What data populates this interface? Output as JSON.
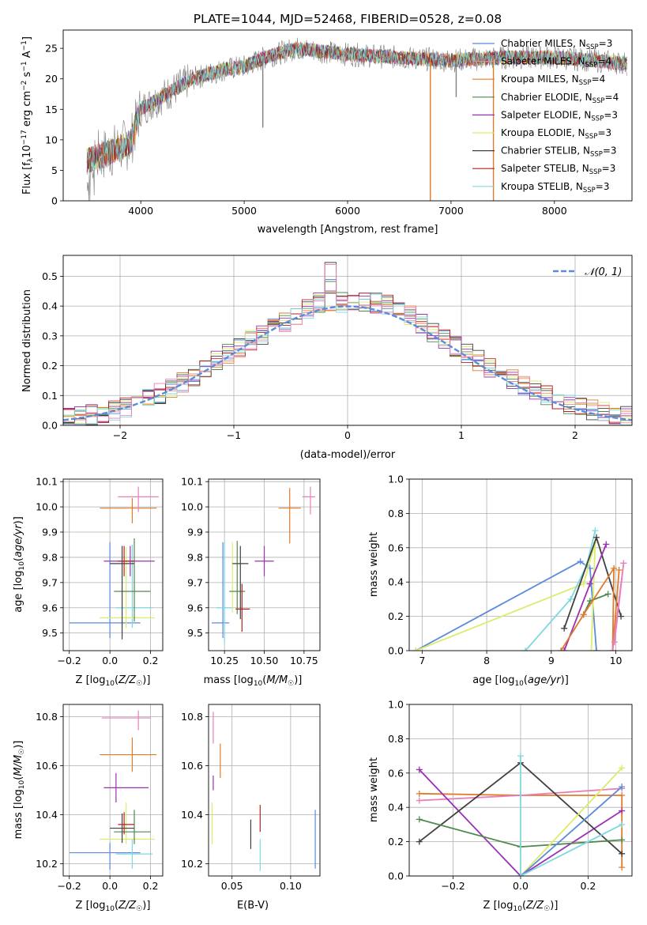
{
  "figure_title": "PLATE=1044, MJD=52468, FIBERID=0528, z=0.08",
  "colors": {
    "chabrier_miles": "#5b8bd9",
    "salpeter_miles": "#f08a8a",
    "kroupa_miles": "#e07b2a",
    "chabrier_elodie": "#4e8a4e",
    "salpeter_elodie": "#9b30b4",
    "kroupa_elodie": "#dcec6a",
    "chabrier_stelib": "#404040",
    "salpeter_stelib": "#b22222",
    "kroupa_stelib": "#7fd8e0",
    "pink": "#e87fb8",
    "grid": "#b0b0b0",
    "normal_curve": "#5b8bd9",
    "data_spectrum": "#808080"
  },
  "panel_spectrum": {
    "xlabel": "wavelength [Angstrom, rest frame]",
    "ylabel": "Flux [f_λ10^-17 erg cm^-2 s^-1 A^-1]",
    "legend": [
      {
        "label": "Chabrier MILES, N_SSP=3",
        "color": "#5b8bd9"
      },
      {
        "label": "Salpeter MILES, N_SSP=4",
        "color": "#f08a8a"
      },
      {
        "label": "Kroupa MILES, N_SSP=4",
        "color": "#e07b2a"
      },
      {
        "label": "Chabrier ELODIE, N_SSP=4",
        "color": "#4e8a4e"
      },
      {
        "label": "Salpeter ELODIE, N_SSP=3",
        "color": "#9b30b4"
      },
      {
        "label": "Kroupa ELODIE, N_SSP=3",
        "color": "#dcec6a"
      },
      {
        "label": "Chabrier STELIB, N_SSP=3",
        "color": "#404040"
      },
      {
        "label": "Salpeter STELIB, N_SSP=3",
        "color": "#b22222"
      },
      {
        "label": "Kroupa STELIB, N_SSP=3",
        "color": "#7fd8e0"
      }
    ]
  },
  "panel_residuals": {
    "xlabel": "(data-model)/error",
    "ylabel": "Normed distribution",
    "legend_label": "𝒩(0, 1)"
  },
  "panel_labels": {
    "age_label": "age  [log10(age/yr)]",
    "z_label": "Z [log10(Z/Z☉)]",
    "mass_label": "mass [log10(M/M☉)]",
    "ebv_label": "E(B-V)",
    "mass_weight_label": "mass weight"
  },
  "chart_data": [
    {
      "type": "line",
      "title": "PLATE=1044, MJD=52468, FIBERID=0528, z=0.08",
      "xlabel": "wavelength [Angstrom, rest frame]",
      "ylabel": "Flux [fλ10^-17 erg cm^-2 s^-1 A^-1]",
      "xlim": [
        3250,
        8750
      ],
      "ylim": [
        0,
        28
      ],
      "x_ticks": [
        4000,
        5000,
        6000,
        7000,
        8000
      ],
      "y_ticks": [
        0,
        5,
        10,
        15,
        20,
        25
      ],
      "continuum": {
        "x": [
          3480,
          3700,
          3900,
          4000,
          4200,
          4500,
          4800,
          5000,
          5200,
          5500,
          6000,
          6500,
          7000,
          7500,
          8000,
          8400,
          8700
        ],
        "y": [
          6.5,
          8,
          9.5,
          15,
          17,
          20,
          21.5,
          22,
          23.5,
          25,
          24,
          23.5,
          23,
          23.5,
          23.5,
          23,
          22.5
        ]
      },
      "spectrum_range": [
        3480,
        8700
      ],
      "sharp_drops": [
        {
          "x": 6800,
          "y": 0
        },
        {
          "x": 7410,
          "y": 0
        },
        {
          "x": 7050,
          "y": 17
        },
        {
          "x": 5180,
          "y": 12
        }
      ],
      "legend_position": "upper right"
    },
    {
      "type": "histogram",
      "xlabel": "(data-model)/error",
      "ylabel": "Normed distribution",
      "xlim": [
        -2.5,
        2.5
      ],
      "ylim": [
        0,
        0.57
      ],
      "x_ticks": [
        -2,
        -1,
        0,
        1,
        2
      ],
      "y_ticks": [
        0.0,
        0.1,
        0.2,
        0.3,
        0.4,
        0.5
      ],
      "bin_width": 0.1,
      "envelope": {
        "x": [
          -2.5,
          -2.0,
          -1.5,
          -1.0,
          -0.5,
          -0.2,
          0.0,
          0.3,
          0.5,
          1.0,
          1.5,
          2.0,
          2.5
        ],
        "y": [
          0.02,
          0.05,
          0.13,
          0.25,
          0.36,
          0.42,
          0.41,
          0.41,
          0.38,
          0.25,
          0.14,
          0.06,
          0.03
        ]
      },
      "reference": {
        "name": "𝒩(0, 1)",
        "style": "dashed",
        "mu": 0,
        "sigma": 1
      },
      "legend_position": "upper right"
    },
    {
      "type": "errorbar",
      "xlabel": "Z [log10(Z/Z☉)]",
      "ylabel": "age  [log10(age/yr)]",
      "xlim": [
        -0.23,
        0.26
      ],
      "ylim": [
        9.43,
        10.11
      ],
      "x_ticks": [
        -0.2,
        0.0,
        0.2
      ],
      "y_ticks": [
        9.5,
        9.6,
        9.7,
        9.8,
        9.9,
        10.0,
        10.1
      ],
      "points": [
        {
          "color": "#5b8bd9",
          "x": 0.0,
          "y": 9.54,
          "xerr": [
            0.2,
            0.15
          ],
          "yerr": [
            0.06,
            0.32
          ]
        },
        {
          "color": "#7fd8e0",
          "x": 0.11,
          "y": 9.6,
          "xerr": [
            0.08,
            0.1
          ],
          "yerr": [
            0.08,
            0.25
          ]
        },
        {
          "color": "#dcec6a",
          "x": 0.08,
          "y": 9.56,
          "xerr": [
            0.13,
            0.14
          ],
          "yerr": [
            0.04,
            0.28
          ]
        },
        {
          "color": "#4e8a4e",
          "x": 0.12,
          "y": 9.665,
          "xerr": [
            0.1,
            0.08
          ],
          "yerr": [
            0.12,
            0.21
          ]
        },
        {
          "color": "#404040",
          "x": 0.06,
          "y": 9.775,
          "xerr": [
            0.06,
            0.06
          ],
          "yerr": [
            0.3,
            0.07
          ]
        },
        {
          "color": "#9b30b4",
          "x": 0.1,
          "y": 9.785,
          "xerr": [
            0.13,
            0.12
          ],
          "yerr": [
            0.06,
            0.06
          ]
        },
        {
          "color": "#b22222",
          "x": 0.07,
          "y": 9.785,
          "xerr": [
            0.03,
            0.05
          ],
          "yerr": [
            0.06,
            0.06
          ]
        },
        {
          "color": "#e07b2a",
          "x": 0.11,
          "y": 9.995,
          "xerr": [
            0.16,
            0.12
          ],
          "yerr": [
            0.06,
            0.04
          ]
        },
        {
          "color": "#e87fb8",
          "x": 0.14,
          "y": 10.04,
          "xerr": [
            0.1,
            0.1
          ],
          "yerr": [
            0.06,
            0.04
          ]
        }
      ]
    },
    {
      "type": "errorbar",
      "xlabel": "mass [log10(M/M☉)]",
      "xlim": [
        10.15,
        10.85
      ],
      "ylim": [
        9.43,
        10.11
      ],
      "x_ticks": [
        10.25,
        10.5,
        10.75
      ],
      "y_ticks": [
        9.5,
        9.6,
        9.7,
        9.8,
        9.9,
        10.0,
        10.1
      ],
      "points": [
        {
          "color": "#5b8bd9",
          "x": 10.24,
          "y": 9.54,
          "xerr": [
            0.07,
            0.04
          ],
          "yerr": [
            0.06,
            0.32
          ]
        },
        {
          "color": "#7fd8e0",
          "x": 10.25,
          "y": 9.6,
          "xerr": [
            0.05,
            0.05
          ],
          "yerr": [
            0.14,
            0.26
          ]
        },
        {
          "color": "#dcec6a",
          "x": 10.3,
          "y": 9.7,
          "xerr": [
            0.0,
            0.0
          ],
          "yerr": [
            0.12,
            0.16
          ]
        },
        {
          "color": "#4e8a4e",
          "x": 10.33,
          "y": 9.665,
          "xerr": [
            0.05,
            0.05
          ],
          "yerr": [
            0.09,
            0.2
          ]
        },
        {
          "color": "#404040",
          "x": 10.35,
          "y": 9.775,
          "xerr": [
            0.05,
            0.05
          ],
          "yerr": [
            0.22,
            0.07
          ]
        },
        {
          "color": "#b22222",
          "x": 10.36,
          "y": 9.595,
          "xerr": [
            0.04,
            0.05
          ],
          "yerr": [
            0.09,
            0.1
          ]
        },
        {
          "color": "#9b30b4",
          "x": 10.5,
          "y": 9.785,
          "xerr": [
            0.06,
            0.06
          ],
          "yerr": [
            0.06,
            0.06
          ]
        },
        {
          "color": "#e07b2a",
          "x": 10.66,
          "y": 9.995,
          "xerr": [
            0.07,
            0.07
          ],
          "yerr": [
            0.14,
            0.08
          ]
        },
        {
          "color": "#e87fb8",
          "x": 10.79,
          "y": 10.04,
          "xerr": [
            0.05,
            0.03
          ],
          "yerr": [
            0.07,
            0.04
          ]
        }
      ]
    },
    {
      "type": "line",
      "xlabel": "age  [log10(age/yr)]",
      "ylabel": "mass weight",
      "xlim": [
        6.8,
        10.25
      ],
      "ylim": [
        0,
        1
      ],
      "x_ticks": [
        7,
        8,
        9,
        10
      ],
      "y_ticks": [
        0.0,
        0.2,
        0.4,
        0.6,
        0.8,
        1.0
      ],
      "series": [
        {
          "color": "#5b8bd9",
          "x": [
            6.9,
            9.45,
            9.6,
            9.7
          ],
          "y": [
            0.0,
            0.52,
            0.48,
            0.0
          ]
        },
        {
          "color": "#dcec6a",
          "x": [
            6.9,
            9.5,
            9.68,
            9.62
          ],
          "y": [
            0.0,
            0.39,
            0.63,
            0.0
          ]
        },
        {
          "color": "#7fd8e0",
          "x": [
            8.6,
            9.3,
            9.55,
            9.68
          ],
          "y": [
            0.0,
            0.3,
            0.5,
            0.7
          ]
        },
        {
          "color": "#404040",
          "x": [
            9.2,
            9.7,
            10.08
          ],
          "y": [
            0.13,
            0.66,
            0.2
          ]
        },
        {
          "color": "#4e8a4e",
          "x": [
            9.5,
            9.6,
            9.88
          ],
          "y": [
            0.21,
            0.29,
            0.33
          ]
        },
        {
          "color": "#9b30b4",
          "x": [
            9.2,
            9.6,
            9.85
          ],
          "y": [
            0.0,
            0.39,
            0.62
          ]
        },
        {
          "color": "#e07b2a",
          "x": [
            9.15,
            9.5,
            9.97,
            9.95,
            10.05
          ],
          "y": [
            0.0,
            0.21,
            0.48,
            0.0,
            0.47
          ]
        },
        {
          "color": "#e87fb8",
          "x": [
            9.95,
            10.12,
            9.98
          ],
          "y": [
            0.0,
            0.51,
            0.05
          ]
        }
      ]
    },
    {
      "type": "errorbar",
      "xlabel": "Z [log10(Z/Z☉)]",
      "ylabel": "mass [log10(M/M☉)]",
      "xlim": [
        -0.23,
        0.26
      ],
      "ylim": [
        10.15,
        10.85
      ],
      "x_ticks": [
        -0.2,
        0.0,
        0.2
      ],
      "y_ticks": [
        10.2,
        10.4,
        10.6,
        10.8
      ],
      "points": [
        {
          "color": "#5b8bd9",
          "x": 0.0,
          "y": 10.245,
          "xerr": [
            0.2,
            0.15
          ],
          "yerr": [
            0.07,
            0.04
          ]
        },
        {
          "color": "#7fd8e0",
          "x": 0.11,
          "y": 10.24,
          "xerr": [
            0.08,
            0.1
          ],
          "yerr": [
            0.06,
            0.06
          ]
        },
        {
          "color": "#dcec6a",
          "x": 0.08,
          "y": 10.3,
          "xerr": [
            0.13,
            0.14
          ],
          "yerr": [
            0.02,
            0.15
          ]
        },
        {
          "color": "#4e8a4e",
          "x": 0.12,
          "y": 10.33,
          "xerr": [
            0.1,
            0.08
          ],
          "yerr": [
            0.05,
            0.09
          ]
        },
        {
          "color": "#404040",
          "x": 0.06,
          "y": 10.345,
          "xerr": [
            0.06,
            0.06
          ],
          "yerr": [
            0.06,
            0.06
          ]
        },
        {
          "color": "#b22222",
          "x": 0.07,
          "y": 10.36,
          "xerr": [
            0.03,
            0.05
          ],
          "yerr": [
            0.04,
            0.05
          ]
        },
        {
          "color": "#9b30b4",
          "x": 0.03,
          "y": 10.51,
          "xerr": [
            0.06,
            0.16
          ],
          "yerr": [
            0.06,
            0.06
          ]
        },
        {
          "color": "#e07b2a",
          "x": 0.11,
          "y": 10.645,
          "xerr": [
            0.16,
            0.12
          ],
          "yerr": [
            0.07,
            0.07
          ]
        },
        {
          "color": "#e87fb8",
          "x": 0.14,
          "y": 10.795,
          "xerr": [
            0.18,
            0.06
          ],
          "yerr": [
            0.05,
            0.03
          ]
        }
      ]
    },
    {
      "type": "errorbar",
      "xlabel": "E(B-V)",
      "xlim": [
        0.03,
        0.125
      ],
      "ylim": [
        10.15,
        10.85
      ],
      "x_ticks": [
        0.05,
        0.1
      ],
      "y_ticks": [
        10.2,
        10.4,
        10.6,
        10.8
      ],
      "points": [
        {
          "color": "#e87fb8",
          "x": 0.034,
          "y": 10.75,
          "yerr": [
            0.06,
            0.07
          ]
        },
        {
          "color": "#9b30b4",
          "x": 0.034,
          "y": 10.53,
          "yerr": [
            0.03,
            0.03
          ]
        },
        {
          "color": "#e07b2a",
          "x": 0.04,
          "y": 10.6,
          "yerr": [
            0.05,
            0.09
          ]
        },
        {
          "color": "#dcec6a",
          "x": 0.033,
          "y": 10.38,
          "yerr": [
            0.1,
            0.07
          ]
        },
        {
          "color": "#404040",
          "x": 0.066,
          "y": 10.32,
          "yerr": [
            0.06,
            0.06
          ]
        },
        {
          "color": "#b22222",
          "x": 0.074,
          "y": 10.38,
          "yerr": [
            0.05,
            0.06
          ]
        },
        {
          "color": "#7fd8e0",
          "x": 0.074,
          "y": 10.24,
          "yerr": [
            0.07,
            0.06
          ]
        },
        {
          "color": "#5b8bd9",
          "x": 0.121,
          "y": 10.3,
          "yerr": [
            0.12,
            0.12
          ]
        }
      ]
    },
    {
      "type": "line",
      "xlabel": "Z [log10(Z/Z☉)]",
      "ylabel": "mass weight",
      "xlim": [
        -0.33,
        0.33
      ],
      "ylim": [
        0,
        1
      ],
      "x_ticks": [
        -0.2,
        0.0,
        0.2
      ],
      "y_ticks": [
        0.0,
        0.2,
        0.4,
        0.6,
        0.8,
        1.0
      ],
      "series": [
        {
          "color": "#e07b2a",
          "x": [
            -0.3,
            0.0,
            0.3,
            0.3
          ],
          "y": [
            0.48,
            0.47,
            0.47,
            0.05
          ]
        },
        {
          "color": "#e87fb8",
          "x": [
            -0.3,
            0.0,
            0.3
          ],
          "y": [
            0.44,
            0.47,
            0.51
          ]
        },
        {
          "color": "#9b30b4",
          "x": [
            -0.3,
            0.0,
            0.3
          ],
          "y": [
            0.62,
            0.0,
            0.38
          ]
        },
        {
          "color": "#404040",
          "x": [
            -0.3,
            0.0,
            0.3
          ],
          "y": [
            0.2,
            0.66,
            0.13
          ]
        },
        {
          "color": "#4e8a4e",
          "x": [
            -0.3,
            0.0,
            0.3
          ],
          "y": [
            0.33,
            0.17,
            0.21
          ]
        },
        {
          "color": "#dcec6a",
          "x": [
            0.0,
            0.3
          ],
          "y": [
            0.0,
            0.63
          ]
        },
        {
          "color": "#5b8bd9",
          "x": [
            0.0,
            0.3
          ],
          "y": [
            0.0,
            0.52
          ]
        },
        {
          "color": "#7fd8e0",
          "x": [
            0.0,
            0.0,
            0.3
          ],
          "y": [
            0.7,
            0.0,
            0.3
          ]
        }
      ]
    }
  ]
}
